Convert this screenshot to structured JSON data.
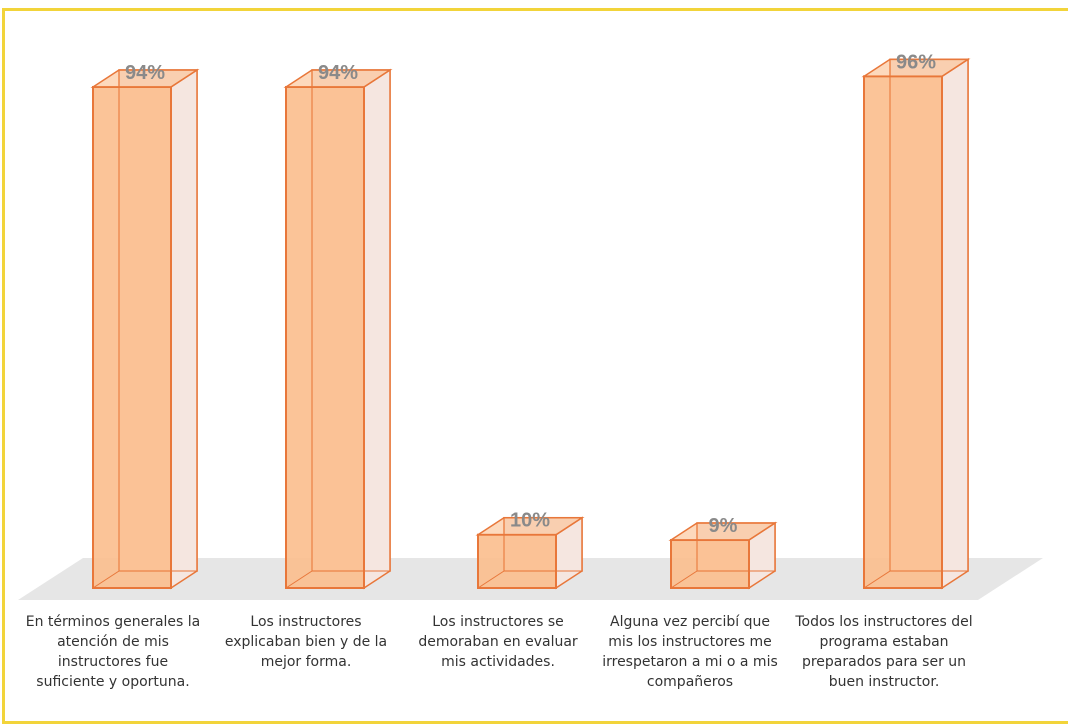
{
  "chart_data": {
    "type": "bar",
    "title": "",
    "xlabel": "",
    "ylabel": "",
    "ylim": [
      0,
      100
    ],
    "categories": [
      "En términos generales la atención de mis instructores fue suficiente y oportuna.",
      "Los instructores explicaban bien y de la mejor forma.",
      "Los instructores se demoraban en evaluar mis actividades.",
      "Alguna vez percibí que mis los instructores me irrespetaron a mi o a mis compañeros",
      "Todos los instructores del programa estaban preparados para ser un buen instructor."
    ],
    "values": [
      94,
      94,
      10,
      9,
      96
    ],
    "data_labels": [
      "94%",
      "94%",
      "10%",
      "9%",
      "96%"
    ],
    "grid": false,
    "legend": "none",
    "colors": {
      "bar_front": "#fbbf8f",
      "bar_edge": "#e8773a",
      "bar_side": "#f5e6e0",
      "floor": "#e6e6e6",
      "border": "#f2d43a",
      "label": "#8a8a8a"
    }
  }
}
